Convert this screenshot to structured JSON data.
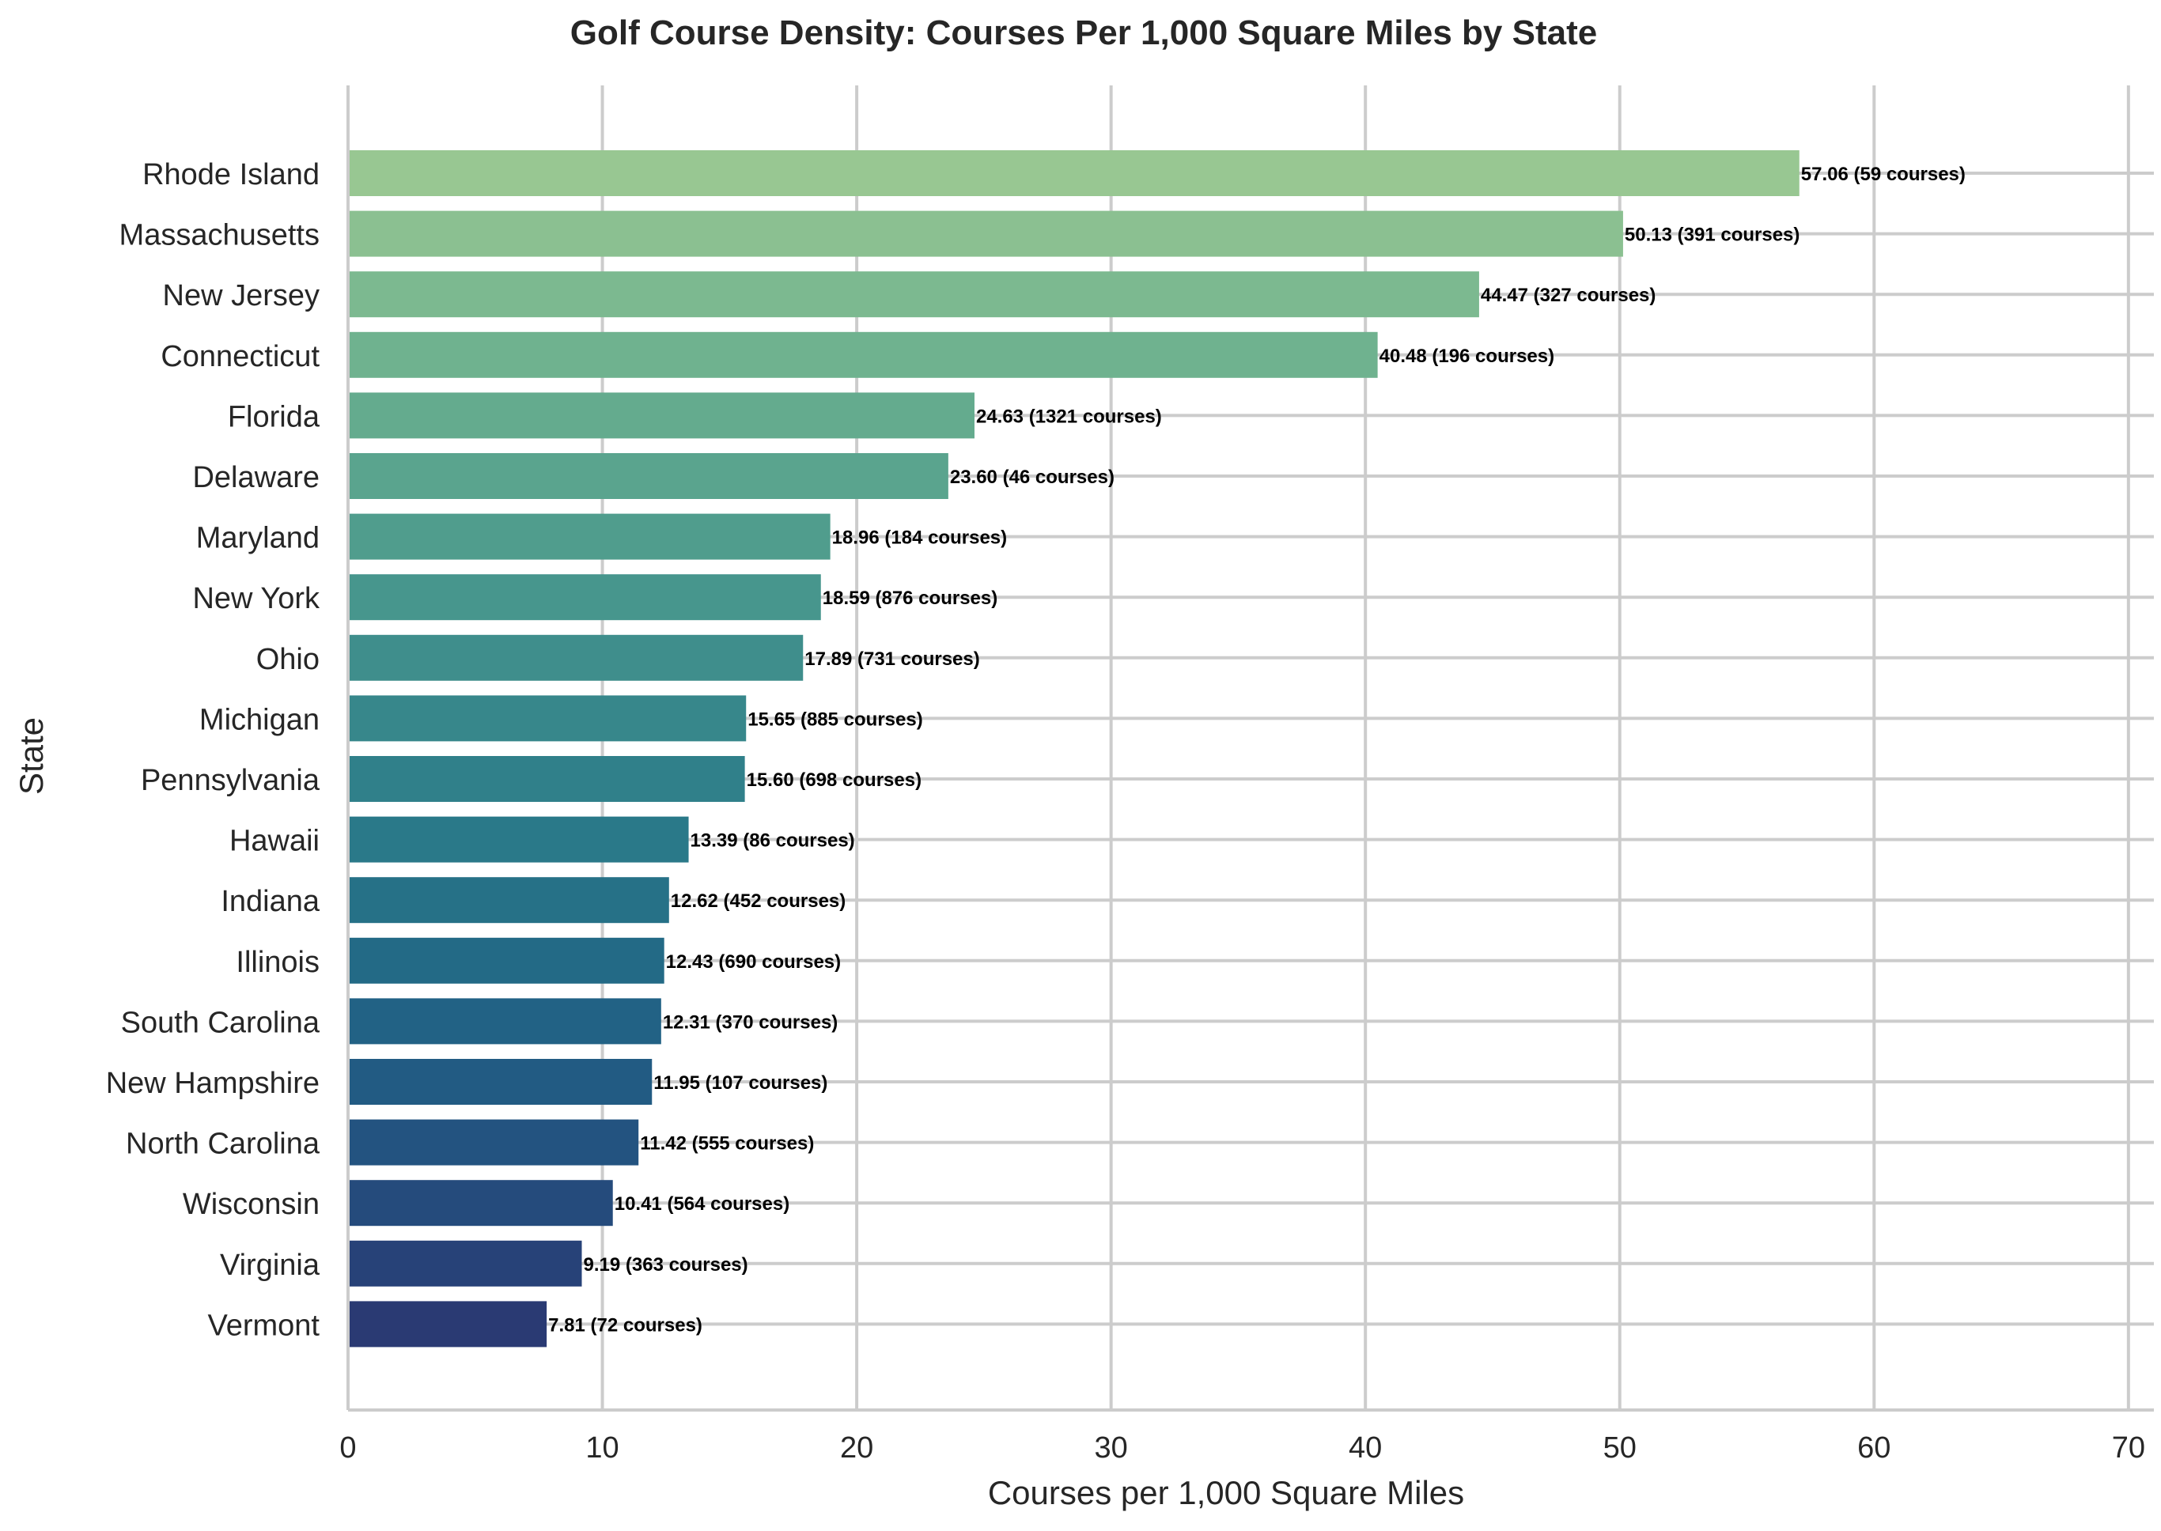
{
  "chart_data": {
    "type": "bar",
    "orientation": "horizontal",
    "title": "Golf Course Density: Courses Per 1,000 Square Miles by State",
    "xlabel": "Courses per 1,000 Square Miles",
    "ylabel": "State",
    "xlim": [
      0,
      71
    ],
    "xticks": [
      0,
      10,
      20,
      30,
      40,
      50,
      60,
      70
    ],
    "grid": true,
    "categories": [
      "Rhode Island",
      "Massachusetts",
      "New Jersey",
      "Connecticut",
      "Florida",
      "Delaware",
      "Maryland",
      "New York",
      "Ohio",
      "Michigan",
      "Pennsylvania",
      "Hawaii",
      "Indiana",
      "Illinois",
      "South Carolina",
      "New Hampshire",
      "North Carolina",
      "Wisconsin",
      "Virginia",
      "Vermont"
    ],
    "values": [
      57.06,
      50.13,
      44.47,
      40.48,
      24.63,
      23.6,
      18.96,
      18.59,
      17.89,
      15.65,
      15.6,
      13.39,
      12.62,
      12.43,
      12.31,
      11.95,
      11.42,
      10.41,
      9.19,
      7.81
    ],
    "bar_labels": [
      "57.06  (59 courses)",
      "50.13  (391 courses)",
      "44.47  (327 courses)",
      "40.48  (196 courses)",
      "24.63  (1321 courses)",
      "23.60  (46 courses)",
      "18.96  (184 courses)",
      "18.59  (876 courses)",
      "17.89  (731 courses)",
      "15.65  (885 courses)",
      "15.60  (698 courses)",
      "13.39  (86 courses)",
      "12.62  (452 courses)",
      "12.43  (690 courses)",
      "12.31  (370 courses)",
      "11.95  (107 courses)",
      "11.42  (555 courses)",
      "10.41  (564 courses)",
      "9.19  (363 courses)",
      "7.81  (72 courses)"
    ],
    "colors": [
      "#98c792",
      "#8bc091",
      "#7cb990",
      "#6fb28f",
      "#64ab8e",
      "#5aa48e",
      "#509d8d",
      "#47968d",
      "#3f8e8c",
      "#37878b",
      "#30808a",
      "#2a7989",
      "#267187",
      "#236a86",
      "#226285",
      "#225b83",
      "#235380",
      "#254b7c",
      "#274278",
      "#2a3a73"
    ]
  }
}
